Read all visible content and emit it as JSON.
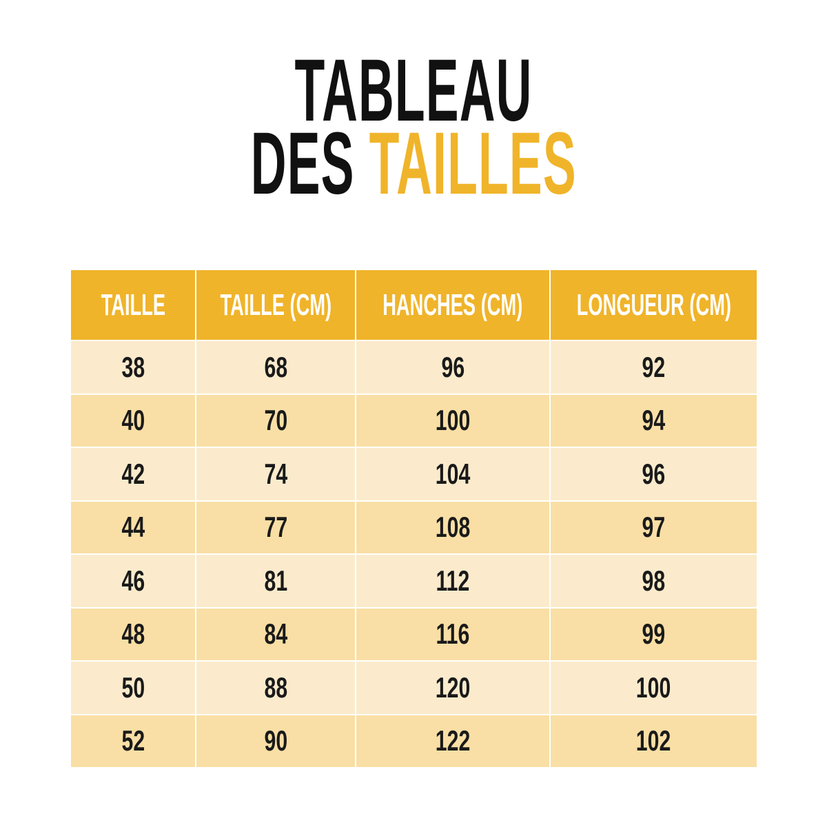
{
  "title": {
    "line1": "TABLEAU",
    "line2_prefix": "DES",
    "line2_accent": "TAILLES"
  },
  "colors": {
    "accent": "#F0B42A",
    "row_light": "#FBEBCC",
    "row_dark": "#F9DFA5",
    "text": "#111111"
  },
  "table": {
    "headers": [
      "TAILLE",
      "TAILLE (CM)",
      "HANCHES (CM)",
      "LONGUEUR (CM)"
    ],
    "rows": [
      [
        "38",
        "68",
        "96",
        "92"
      ],
      [
        "40",
        "70",
        "100",
        "94"
      ],
      [
        "42",
        "74",
        "104",
        "96"
      ],
      [
        "44",
        "77",
        "108",
        "97"
      ],
      [
        "46",
        "81",
        "112",
        "98"
      ],
      [
        "48",
        "84",
        "116",
        "99"
      ],
      [
        "50",
        "88",
        "120",
        "100"
      ],
      [
        "52",
        "90",
        "122",
        "102"
      ]
    ]
  }
}
